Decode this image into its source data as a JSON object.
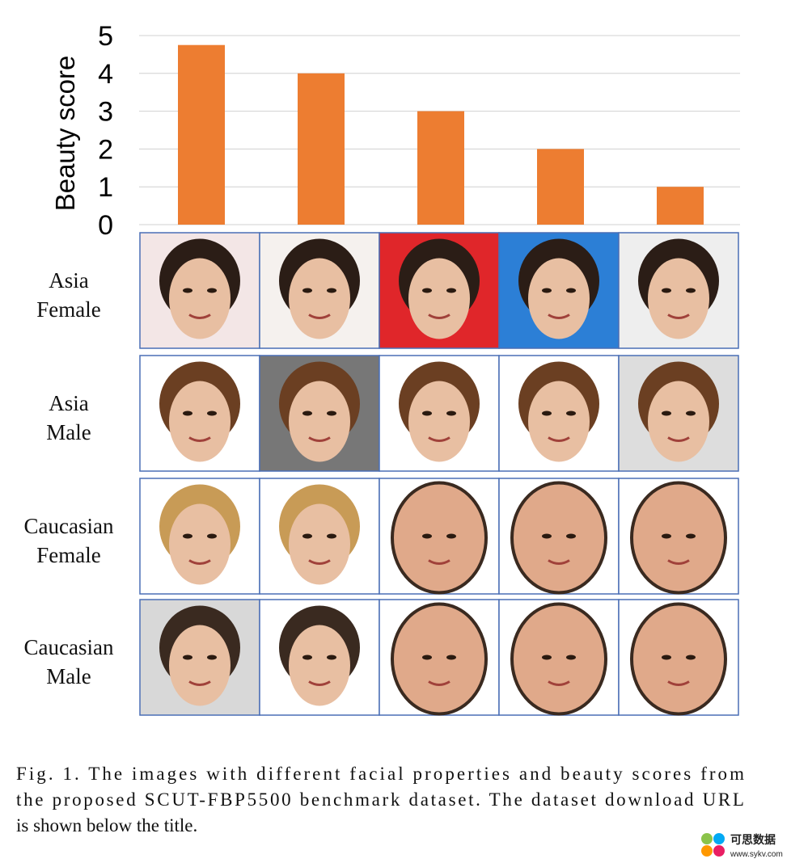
{
  "chart_data": {
    "type": "bar",
    "ylabel": "Beauty score",
    "categories": [
      null,
      null,
      null,
      null,
      null
    ],
    "values": [
      4.75,
      4,
      3,
      2,
      1
    ],
    "color": "#ed7d31",
    "ylim": [
      0,
      5
    ],
    "yticks": [
      0,
      1,
      2,
      3,
      4,
      5
    ],
    "grid": true
  },
  "row_labels": [
    [
      "Asia",
      "Female"
    ],
    [
      "Asia",
      "Male"
    ],
    [
      "Caucasian",
      "Female"
    ],
    [
      "Caucasian",
      "Male"
    ]
  ],
  "caption": [
    "Fig. 1.  The images with different facial properties and beauty scores from",
    "the proposed SCUT-FBP5500 benchmark dataset. The dataset download URL",
    "is shown below the title."
  ],
  "watermark": {
    "text": "可思数据",
    "url": "www.sykv.com"
  }
}
